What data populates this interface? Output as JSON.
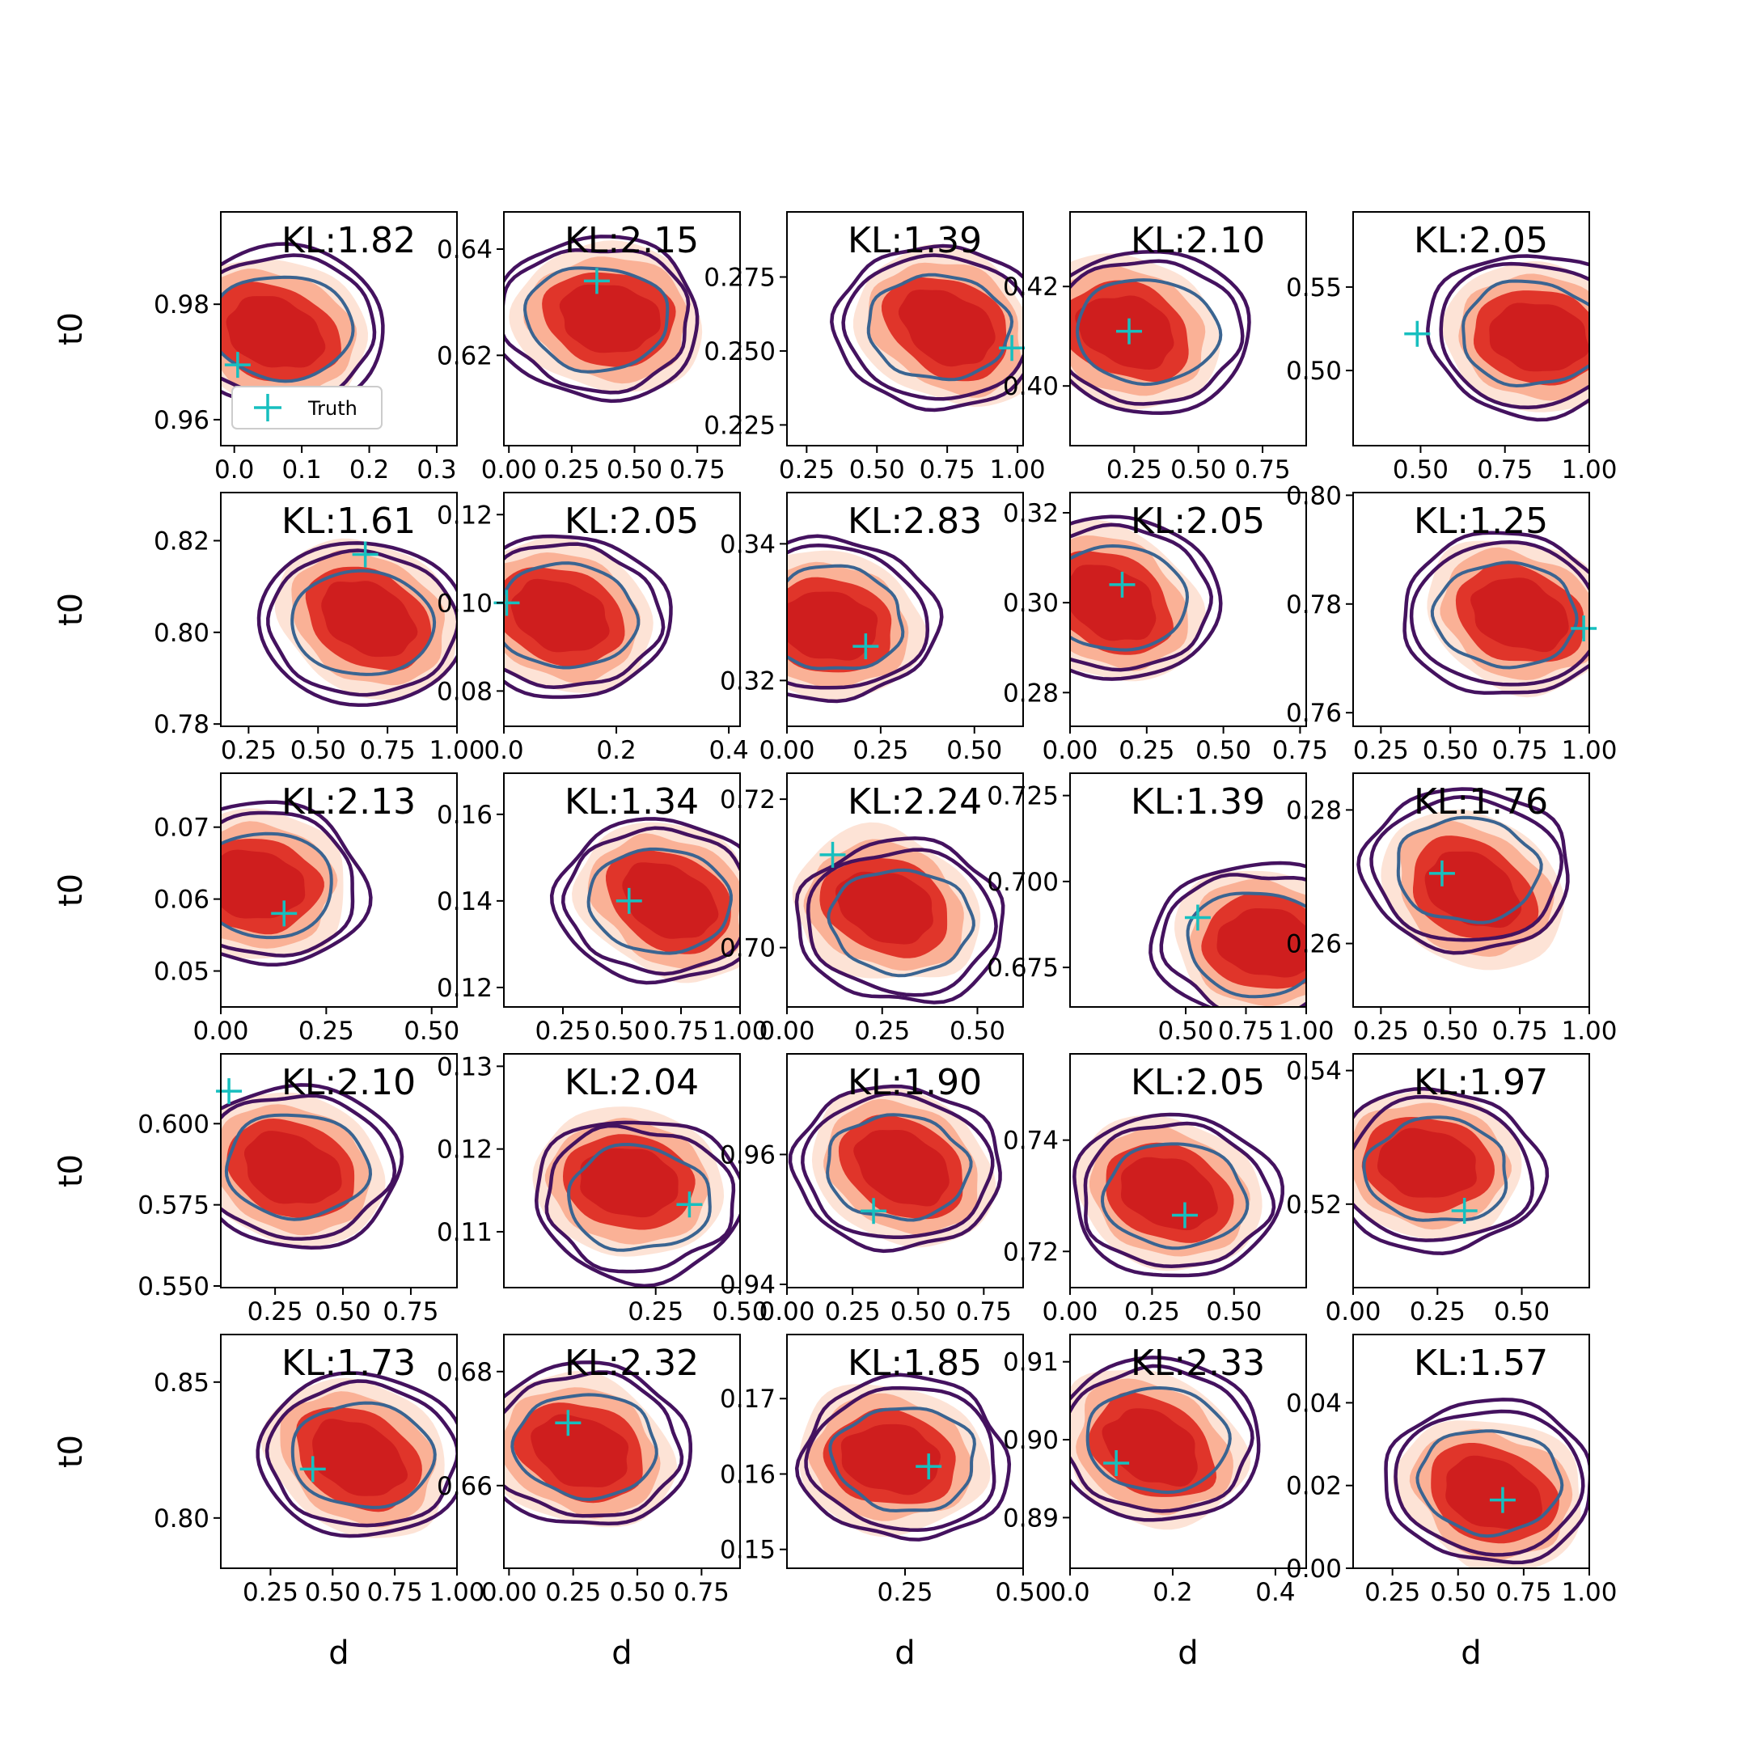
{
  "colors": {
    "fill_outer": "#fde0d2",
    "fill_mid": "#f9ab8f",
    "fill_inner": "#e0352a",
    "fill_core": "#cf1e1e",
    "contour_outer": "#44125f",
    "contour_inner": "#3a6491",
    "truth": "#17bfbf",
    "axes": "#000000"
  },
  "legend": {
    "label": "Truth",
    "marker": "plus-icon"
  },
  "chart_data": [
    {
      "type": "contour",
      "title": "KL:1.82",
      "xlabel": "",
      "ylabel": "t0",
      "xlim": [
        -0.02,
        0.33
      ],
      "ylim": [
        0.9555,
        0.996
      ],
      "xticks": [
        0.0,
        0.1,
        0.2,
        0.3
      ],
      "xtick_labels": [
        "0.0",
        "0.1",
        "0.2",
        "0.3"
      ],
      "yticks": [
        0.96,
        0.98
      ],
      "ytick_labels": [
        "0.96",
        "0.98"
      ],
      "fill_center": [
        0.06,
        0.975
      ],
      "contour_center": [
        0.07,
        0.976
      ],
      "truth": [
        0.005,
        0.9695
      ],
      "legend": true
    },
    {
      "type": "contour",
      "title": "KL:2.15",
      "xlabel": "",
      "ylabel": "",
      "xlim": [
        -0.02,
        0.92
      ],
      "ylim": [
        0.603,
        0.647
      ],
      "xticks": [
        0.0,
        0.25,
        0.5,
        0.75
      ],
      "xtick_labels": [
        "0.00",
        "0.25",
        "0.50",
        "0.75"
      ],
      "yticks": [
        0.62,
        0.64
      ],
      "ytick_labels": [
        "0.62",
        "0.64"
      ],
      "fill_center": [
        0.4,
        0.627
      ],
      "contour_center": [
        0.35,
        0.627
      ],
      "truth": [
        0.35,
        0.634
      ]
    },
    {
      "type": "contour",
      "title": "KL:1.39",
      "xlabel": "",
      "ylabel": "",
      "xlim": [
        0.18,
        1.02
      ],
      "ylim": [
        0.218,
        0.297
      ],
      "xticks": [
        0.25,
        0.5,
        0.75,
        1.0
      ],
      "xtick_labels": [
        "0.25",
        "0.50",
        "0.75",
        "1.00"
      ],
      "yticks": [
        0.225,
        0.25,
        0.275
      ],
      "ytick_labels": [
        "0.225",
        "0.250",
        "0.275"
      ],
      "fill_center": [
        0.75,
        0.258
      ],
      "contour_center": [
        0.72,
        0.258
      ],
      "truth": [
        0.98,
        0.251
      ]
    },
    {
      "type": "contour",
      "title": "KL:2.10",
      "xlabel": "",
      "ylabel": "",
      "xlim": [
        0.0,
        0.92
      ],
      "ylim": [
        0.388,
        0.435
      ],
      "xticks": [
        0.25,
        0.5,
        0.75
      ],
      "xtick_labels": [
        "0.25",
        "0.50",
        "0.75"
      ],
      "yticks": [
        0.4,
        0.42
      ],
      "ytick_labels": [
        "0.40",
        "0.42"
      ],
      "fill_center": [
        0.22,
        0.411
      ],
      "contour_center": [
        0.3,
        0.411
      ],
      "truth": [
        0.23,
        0.411
      ]
    },
    {
      "type": "contour",
      "title": "KL:2.05",
      "xlabel": "",
      "ylabel": "",
      "xlim": [
        0.3,
        1.0
      ],
      "ylim": [
        0.455,
        0.595
      ],
      "xticks": [
        0.5,
        0.75,
        1.0
      ],
      "xtick_labels": [
        "0.50",
        "0.75",
        "1.00"
      ],
      "yticks": [
        0.5,
        0.55
      ],
      "ytick_labels": [
        "0.50",
        "0.55"
      ],
      "fill_center": [
        0.85,
        0.52
      ],
      "contour_center": [
        0.83,
        0.522
      ],
      "truth": [
        0.49,
        0.522
      ]
    },
    {
      "type": "contour",
      "title": "KL:1.61",
      "xlabel": "",
      "ylabel": "t0",
      "xlim": [
        0.15,
        1.0
      ],
      "ylim": [
        0.7795,
        0.8305
      ],
      "xticks": [
        0.25,
        0.5,
        0.75,
        1.0
      ],
      "xtick_labels": [
        "0.25",
        "0.50",
        "0.75",
        "1.00"
      ],
      "yticks": [
        0.78,
        0.8,
        0.82
      ],
      "ytick_labels": [
        "0.78",
        "0.80",
        "0.82"
      ],
      "fill_center": [
        0.68,
        0.803
      ],
      "contour_center": [
        0.66,
        0.802
      ],
      "truth": [
        0.67,
        0.817
      ]
    },
    {
      "type": "contour",
      "title": "KL:2.05",
      "xlabel": "",
      "ylabel": "",
      "xlim": [
        0.0,
        0.42
      ],
      "ylim": [
        0.072,
        0.125
      ],
      "xticks": [
        0.0,
        0.2,
        0.4
      ],
      "xtick_labels": [
        "0.0",
        "0.2",
        "0.4"
      ],
      "yticks": [
        0.08,
        0.1,
        0.12
      ],
      "ytick_labels": [
        "0.08",
        "0.10",
        "0.12"
      ],
      "fill_center": [
        0.1,
        0.097
      ],
      "contour_center": [
        0.11,
        0.097
      ],
      "truth": [
        0.005,
        0.1
      ]
    },
    {
      "type": "contour",
      "title": "KL:2.83",
      "xlabel": "",
      "ylabel": "",
      "xlim": [
        0.0,
        0.63
      ],
      "ylim": [
        0.3133,
        0.3475
      ],
      "xticks": [
        0.0,
        0.25,
        0.5
      ],
      "xtick_labels": [
        "0.00",
        "0.25",
        "0.50"
      ],
      "yticks": [
        0.32,
        0.34
      ],
      "ytick_labels": [
        "0.32",
        "0.34"
      ],
      "fill_center": [
        0.11,
        0.328
      ],
      "contour_center": [
        0.12,
        0.329
      ],
      "truth": [
        0.21,
        0.325
      ]
    },
    {
      "type": "contour",
      "title": "KL:2.05",
      "xlabel": "",
      "ylabel": "",
      "xlim": [
        0.0,
        0.77
      ],
      "ylim": [
        0.2725,
        0.3245
      ],
      "xticks": [
        0.0,
        0.25,
        0.5,
        0.75
      ],
      "xtick_labels": [
        "0.00",
        "0.25",
        "0.50",
        "0.75"
      ],
      "yticks": [
        0.28,
        0.3,
        0.32
      ],
      "ytick_labels": [
        "0.28",
        "0.30",
        "0.32"
      ],
      "fill_center": [
        0.13,
        0.3
      ],
      "contour_center": [
        0.15,
        0.301
      ],
      "truth": [
        0.17,
        0.304
      ]
    },
    {
      "type": "contour",
      "title": "KL:1.25",
      "xlabel": "",
      "ylabel": "",
      "xlim": [
        0.15,
        1.0
      ],
      "ylim": [
        0.7575,
        0.8005
      ],
      "xticks": [
        0.25,
        0.5,
        0.75,
        1.0
      ],
      "xtick_labels": [
        "0.25",
        "0.50",
        "0.75",
        "1.00"
      ],
      "yticks": [
        0.76,
        0.78,
        0.8
      ],
      "ytick_labels": [
        "0.76",
        "0.78",
        "0.80"
      ],
      "fill_center": [
        0.75,
        0.778
      ],
      "contour_center": [
        0.7,
        0.778
      ],
      "truth": [
        0.98,
        0.7755
      ]
    },
    {
      "type": "contour",
      "title": "KL:2.13",
      "xlabel": "",
      "ylabel": "t0",
      "xlim": [
        0.0,
        0.56
      ],
      "ylim": [
        0.045,
        0.0775
      ],
      "xticks": [
        0.0,
        0.25,
        0.5
      ],
      "xtick_labels": [
        "0.00",
        "0.25",
        "0.50"
      ],
      "yticks": [
        0.05,
        0.06,
        0.07
      ],
      "ytick_labels": [
        "0.05",
        "0.06",
        "0.07"
      ],
      "fill_center": [
        0.08,
        0.062
      ],
      "contour_center": [
        0.1,
        0.062
      ],
      "truth": [
        0.15,
        0.058
      ]
    },
    {
      "type": "contour",
      "title": "KL:1.34",
      "xlabel": "",
      "ylabel": "",
      "xlim": [
        0.0,
        1.0
      ],
      "ylim": [
        0.1155,
        0.1695
      ],
      "xticks": [
        0.25,
        0.5,
        0.75,
        1.0
      ],
      "xtick_labels": [
        "0.25",
        "0.50",
        "0.75",
        "1.00"
      ],
      "yticks": [
        0.12,
        0.14,
        0.16
      ],
      "ytick_labels": [
        "0.12",
        "0.14",
        "0.16"
      ],
      "fill_center": [
        0.7,
        0.14
      ],
      "contour_center": [
        0.66,
        0.14
      ],
      "truth": [
        0.53,
        0.14
      ]
    },
    {
      "type": "contour",
      "title": "KL:2.24",
      "xlabel": "",
      "ylabel": "",
      "xlim": [
        0.0,
        0.62
      ],
      "ylim": [
        0.692,
        0.7235
      ],
      "xticks": [
        0.0,
        0.25,
        0.5
      ],
      "xtick_labels": [
        "0.00",
        "0.25",
        "0.50"
      ],
      "yticks": [
        0.7,
        0.72
      ],
      "ytick_labels": [
        "0.70",
        "0.72"
      ],
      "fill_center": [
        0.26,
        0.7055
      ],
      "contour_center": [
        0.3,
        0.7035
      ],
      "truth": [
        0.12,
        0.7125
      ]
    },
    {
      "type": "contour",
      "title": "KL:1.39",
      "xlabel": "",
      "ylabel": "",
      "xlim": [
        0.02,
        1.0
      ],
      "ylim": [
        0.6635,
        0.7315
      ],
      "xticks": [
        0.5,
        0.75,
        1.0
      ],
      "xtick_labels": [
        "0.50",
        "0.75",
        "1.00"
      ],
      "yticks": [
        0.675,
        0.7,
        0.725
      ],
      "ytick_labels": [
        "0.675",
        "0.700",
        "0.725"
      ],
      "fill_center": [
        0.84,
        0.682
      ],
      "contour_center": [
        0.8,
        0.682
      ],
      "truth": [
        0.55,
        0.6895
      ]
    },
    {
      "type": "contour",
      "title": "KL:1.76",
      "xlabel": "",
      "ylabel": "",
      "xlim": [
        0.15,
        1.0
      ],
      "ylim": [
        0.2505,
        0.2855
      ],
      "xticks": [
        0.25,
        0.5,
        0.75,
        1.0
      ],
      "xtick_labels": [
        "0.25",
        "0.50",
        "0.75",
        "1.00"
      ],
      "yticks": [
        0.26,
        0.28
      ],
      "ytick_labels": [
        "0.26",
        "0.28"
      ],
      "fill_center": [
        0.58,
        0.268
      ],
      "contour_center": [
        0.56,
        0.271
      ],
      "truth": [
        0.47,
        0.2705
      ]
    },
    {
      "type": "contour",
      "title": "KL:2.10",
      "xlabel": "",
      "ylabel": "t0",
      "xlim": [
        0.05,
        0.92
      ],
      "ylim": [
        0.5495,
        0.6215
      ],
      "xticks": [
        0.25,
        0.5,
        0.75
      ],
      "xtick_labels": [
        "0.25",
        "0.50",
        "0.75"
      ],
      "yticks": [
        0.55,
        0.575,
        0.6
      ],
      "ytick_labels": [
        "0.550",
        "0.575",
        "0.600"
      ],
      "fill_center": [
        0.31,
        0.586
      ],
      "contour_center": [
        0.33,
        0.587
      ],
      "truth": [
        0.08,
        0.61
      ]
    },
    {
      "type": "contour",
      "title": "KL:2.04",
      "xlabel": "",
      "ylabel": "",
      "xlim": [
        -0.2,
        0.5
      ],
      "ylim": [
        0.10325,
        0.1315
      ],
      "xticks": [
        0.25,
        0.5
      ],
      "xtick_labels": [
        "0.25",
        "0.50"
      ],
      "yticks": [
        0.11,
        0.12,
        0.13
      ],
      "ytick_labels": [
        "0.11",
        "0.12",
        "0.13"
      ],
      "fill_center": [
        0.17,
        0.116
      ],
      "contour_center": [
        0.2,
        0.114
      ],
      "truth": [
        0.35,
        0.1133
      ]
    },
    {
      "type": "contour",
      "title": "KL:1.90",
      "xlabel": "",
      "ylabel": "",
      "xlim": [
        0.0,
        0.9
      ],
      "ylim": [
        0.9395,
        0.9755
      ],
      "xticks": [
        0.0,
        0.25,
        0.5,
        0.75
      ],
      "xtick_labels": [
        "0.00",
        "0.25",
        "0.50",
        "0.75"
      ],
      "yticks": [
        0.94,
        0.96
      ],
      "ytick_labels": [
        "0.94",
        "0.96"
      ],
      "fill_center": [
        0.44,
        0.958
      ],
      "contour_center": [
        0.42,
        0.958
      ],
      "truth": [
        0.33,
        0.9513
      ]
    },
    {
      "type": "contour",
      "title": "KL:2.05",
      "xlabel": "",
      "ylabel": "",
      "xlim": [
        0.0,
        0.72
      ],
      "ylim": [
        0.7135,
        0.7555
      ],
      "xticks": [
        0.0,
        0.25,
        0.5
      ],
      "xtick_labels": [
        "0.00",
        "0.25",
        "0.50"
      ],
      "yticks": [
        0.72,
        0.74
      ],
      "ytick_labels": [
        "0.72",
        "0.74"
      ],
      "fill_center": [
        0.3,
        0.7305
      ],
      "contour_center": [
        0.32,
        0.73
      ],
      "truth": [
        0.35,
        0.7265
      ]
    },
    {
      "type": "contour",
      "title": "KL:1.97",
      "xlabel": "",
      "ylabel": "",
      "xlim": [
        0.0,
        0.7
      ],
      "ylim": [
        0.5075,
        0.5425
      ],
      "xticks": [
        0.0,
        0.25,
        0.5
      ],
      "xtick_labels": [
        "0.00",
        "0.25",
        "0.50"
      ],
      "yticks": [
        0.52,
        0.54
      ],
      "ytick_labels": [
        "0.52",
        "0.54"
      ],
      "fill_center": [
        0.22,
        0.526
      ],
      "contour_center": [
        0.25,
        0.525
      ],
      "truth": [
        0.33,
        0.519
      ]
    },
    {
      "type": "contour",
      "title": "KL:1.73",
      "xlabel": "d",
      "ylabel": "t0",
      "xlim": [
        0.05,
        1.0
      ],
      "ylim": [
        0.7815,
        0.8675
      ],
      "xticks": [
        0.25,
        0.5,
        0.75,
        1.0
      ],
      "xtick_labels": [
        "0.25",
        "0.50",
        "0.75",
        "1.00"
      ],
      "yticks": [
        0.8,
        0.85
      ],
      "ytick_labels": [
        "0.80",
        "0.85"
      ],
      "fill_center": [
        0.6,
        0.822
      ],
      "contour_center": [
        0.62,
        0.823
      ],
      "truth": [
        0.42,
        0.818
      ]
    },
    {
      "type": "contour",
      "title": "KL:2.32",
      "xlabel": "d",
      "ylabel": "",
      "xlim": [
        -0.02,
        0.9
      ],
      "ylim": [
        0.6455,
        0.6865
      ],
      "xticks": [
        0.0,
        0.25,
        0.5,
        0.75
      ],
      "xtick_labels": [
        "0.00",
        "0.25",
        "0.50",
        "0.75"
      ],
      "yticks": [
        0.66,
        0.68
      ],
      "ytick_labels": [
        "0.66",
        "0.68"
      ],
      "fill_center": [
        0.28,
        0.666
      ],
      "contour_center": [
        0.3,
        0.667
      ],
      "truth": [
        0.23,
        0.671
      ]
    },
    {
      "type": "contour",
      "title": "KL:1.85",
      "xlabel": "d",
      "ylabel": "",
      "xlim": [
        0.0,
        0.5
      ],
      "ylim": [
        0.1475,
        0.1785
      ],
      "xticks": [
        0.25,
        0.5
      ],
      "xtick_labels": [
        "0.25",
        "0.50"
      ],
      "yticks": [
        0.15,
        0.16,
        0.17
      ],
      "ytick_labels": [
        "0.15",
        "0.16",
        "0.17"
      ],
      "fill_center": [
        0.22,
        0.162
      ],
      "contour_center": [
        0.25,
        0.162
      ],
      "truth": [
        0.3,
        0.161
      ]
    },
    {
      "type": "contour",
      "title": "KL:2.33",
      "xlabel": "d",
      "ylabel": "",
      "xlim": [
        0.0,
        0.46
      ],
      "ylim": [
        0.8835,
        0.9135
      ],
      "xticks": [
        0.0,
        0.2,
        0.4
      ],
      "xtick_labels": [
        "0.0",
        "0.2",
        "0.4"
      ],
      "yticks": [
        0.89,
        0.9,
        0.91
      ],
      "ytick_labels": [
        "0.89",
        "0.90",
        "0.91"
      ],
      "fill_center": [
        0.16,
        0.899
      ],
      "contour_center": [
        0.17,
        0.9
      ],
      "truth": [
        0.09,
        0.897
      ]
    },
    {
      "type": "contour",
      "title": "KL:1.57",
      "xlabel": "d",
      "ylabel": "",
      "xlim": [
        0.1,
        1.0
      ],
      "ylim": [
        0.0,
        0.0565
      ],
      "xticks": [
        0.25,
        0.5,
        0.75,
        1.0
      ],
      "xtick_labels": [
        "0.25",
        "0.50",
        "0.75",
        "1.00"
      ],
      "yticks": [
        0.0,
        0.02,
        0.04
      ],
      "ytick_labels": [
        "0.00",
        "0.02",
        "0.04"
      ],
      "fill_center": [
        0.63,
        0.018
      ],
      "contour_center": [
        0.62,
        0.021
      ],
      "truth": [
        0.67,
        0.0165
      ]
    }
  ]
}
